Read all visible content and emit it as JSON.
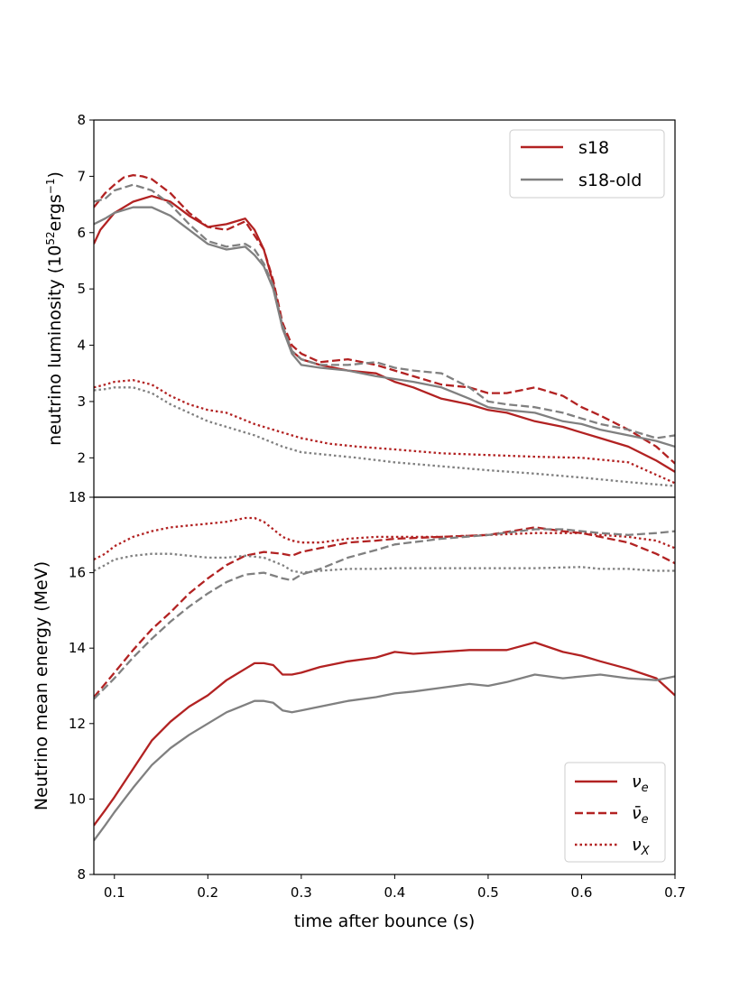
{
  "chart_data": [
    {
      "type": "line",
      "panel": "top",
      "title": "",
      "xlabel": "",
      "ylabel": "neutrino luminosity (10",
      "ylabel_sup1": "52",
      "ylabel_mid": "ergs",
      "ylabel_sup2": "−1",
      "ylabel_end": ")",
      "xlim": [
        0.078,
        0.7
      ],
      "ylim": [
        1.3,
        8
      ],
      "yticks": [
        2,
        3,
        4,
        5,
        6,
        7,
        8
      ],
      "legend": {
        "placement": "top-right",
        "entries": [
          "s18",
          "s18-old"
        ]
      },
      "series": [
        {
          "name": "s18 ν_e",
          "model": "s18",
          "flavor": "nu_e",
          "style": "solid",
          "color": "#b22222",
          "x": [
            0.078,
            0.085,
            0.1,
            0.12,
            0.14,
            0.16,
            0.18,
            0.2,
            0.22,
            0.24,
            0.25,
            0.26,
            0.27,
            0.28,
            0.29,
            0.3,
            0.32,
            0.35,
            0.38,
            0.4,
            0.42,
            0.45,
            0.48,
            0.5,
            0.52,
            0.55,
            0.58,
            0.6,
            0.62,
            0.65,
            0.68,
            0.7
          ],
          "y": [
            5.8,
            6.05,
            6.35,
            6.55,
            6.65,
            6.55,
            6.3,
            6.1,
            6.15,
            6.25,
            6.05,
            5.7,
            5.1,
            4.3,
            3.9,
            3.75,
            3.65,
            3.55,
            3.5,
            3.35,
            3.25,
            3.05,
            2.95,
            2.85,
            2.8,
            2.65,
            2.55,
            2.45,
            2.35,
            2.2,
            1.95,
            1.75
          ]
        },
        {
          "name": "s18 anti-ν_e",
          "model": "s18",
          "flavor": "anti_nu_e",
          "style": "dashed",
          "color": "#b22222",
          "x": [
            0.078,
            0.09,
            0.1,
            0.11,
            0.12,
            0.13,
            0.14,
            0.16,
            0.18,
            0.2,
            0.22,
            0.24,
            0.26,
            0.27,
            0.28,
            0.29,
            0.3,
            0.32,
            0.35,
            0.38,
            0.4,
            0.42,
            0.45,
            0.48,
            0.5,
            0.52,
            0.55,
            0.58,
            0.6,
            0.62,
            0.65,
            0.68,
            0.7
          ],
          "y": [
            6.45,
            6.7,
            6.85,
            6.98,
            7.02,
            7.0,
            6.95,
            6.7,
            6.35,
            6.1,
            6.05,
            6.2,
            5.7,
            5.15,
            4.4,
            4.0,
            3.85,
            3.7,
            3.75,
            3.65,
            3.55,
            3.45,
            3.3,
            3.25,
            3.15,
            3.15,
            3.25,
            3.1,
            2.9,
            2.75,
            2.5,
            2.2,
            1.9
          ]
        },
        {
          "name": "s18 ν_X",
          "model": "s18",
          "flavor": "nu_x",
          "style": "dotted",
          "color": "#b22222",
          "x": [
            0.078,
            0.09,
            0.1,
            0.12,
            0.14,
            0.16,
            0.18,
            0.2,
            0.22,
            0.25,
            0.28,
            0.3,
            0.33,
            0.36,
            0.4,
            0.45,
            0.5,
            0.55,
            0.6,
            0.65,
            0.7
          ],
          "y": [
            3.25,
            3.3,
            3.35,
            3.38,
            3.3,
            3.1,
            2.95,
            2.85,
            2.8,
            2.6,
            2.45,
            2.35,
            2.25,
            2.2,
            2.15,
            2.08,
            2.05,
            2.02,
            2.0,
            1.92,
            1.55
          ]
        },
        {
          "name": "s18-old ν_e",
          "model": "s18-old",
          "flavor": "nu_e",
          "style": "solid",
          "color": "#808080",
          "x": [
            0.078,
            0.09,
            0.1,
            0.12,
            0.14,
            0.16,
            0.18,
            0.2,
            0.22,
            0.24,
            0.25,
            0.26,
            0.27,
            0.28,
            0.29,
            0.3,
            0.32,
            0.35,
            0.38,
            0.4,
            0.42,
            0.45,
            0.48,
            0.5,
            0.52,
            0.55,
            0.58,
            0.6,
            0.62,
            0.65,
            0.68,
            0.7
          ],
          "y": [
            6.15,
            6.25,
            6.35,
            6.45,
            6.45,
            6.3,
            6.05,
            5.8,
            5.7,
            5.75,
            5.6,
            5.4,
            5.0,
            4.3,
            3.85,
            3.65,
            3.6,
            3.55,
            3.45,
            3.4,
            3.35,
            3.25,
            3.05,
            2.9,
            2.85,
            2.8,
            2.65,
            2.6,
            2.5,
            2.4,
            2.3,
            2.2
          ]
        },
        {
          "name": "s18-old anti-ν_e",
          "model": "s18-old",
          "flavor": "anti_nu_e",
          "style": "dashed",
          "color": "#808080",
          "x": [
            0.078,
            0.09,
            0.1,
            0.12,
            0.14,
            0.16,
            0.18,
            0.2,
            0.22,
            0.24,
            0.25,
            0.26,
            0.27,
            0.28,
            0.29,
            0.3,
            0.32,
            0.35,
            0.38,
            0.4,
            0.42,
            0.45,
            0.48,
            0.5,
            0.52,
            0.55,
            0.58,
            0.6,
            0.62,
            0.65,
            0.68,
            0.7
          ],
          "y": [
            6.55,
            6.6,
            6.75,
            6.85,
            6.75,
            6.5,
            6.15,
            5.85,
            5.75,
            5.8,
            5.7,
            5.45,
            5.05,
            4.35,
            3.9,
            3.75,
            3.65,
            3.65,
            3.7,
            3.6,
            3.55,
            3.5,
            3.25,
            3.0,
            2.95,
            2.9,
            2.8,
            2.7,
            2.6,
            2.5,
            2.35,
            2.4
          ]
        },
        {
          "name": "s18-old ν_X",
          "model": "s18-old",
          "flavor": "nu_x",
          "style": "dotted",
          "color": "#808080",
          "x": [
            0.078,
            0.09,
            0.1,
            0.12,
            0.14,
            0.16,
            0.18,
            0.2,
            0.22,
            0.25,
            0.28,
            0.3,
            0.33,
            0.36,
            0.4,
            0.45,
            0.5,
            0.55,
            0.6,
            0.65,
            0.7
          ],
          "y": [
            3.2,
            3.22,
            3.25,
            3.25,
            3.15,
            2.95,
            2.8,
            2.65,
            2.55,
            2.4,
            2.2,
            2.1,
            2.05,
            2.0,
            1.92,
            1.85,
            1.78,
            1.72,
            1.65,
            1.57,
            1.5
          ]
        }
      ]
    },
    {
      "type": "line",
      "panel": "bottom",
      "title": "",
      "xlabel": "time after bounce (s)",
      "ylabel": "Neutrino mean energy (MeV)",
      "xlim": [
        0.078,
        0.7
      ],
      "ylim": [
        8,
        18
      ],
      "xticks": [
        0.1,
        0.2,
        0.3,
        0.4,
        0.5,
        0.6,
        0.7
      ],
      "yticks": [
        8,
        10,
        12,
        14,
        16,
        18
      ],
      "legend": {
        "placement": "bottom-right",
        "entries": [
          "ν",
          "ν̄",
          "ν"
        ],
        "subscripts": [
          "e",
          "e",
          "X"
        ]
      },
      "series": [
        {
          "name": "s18 ν_e",
          "model": "s18",
          "flavor": "nu_e",
          "style": "solid",
          "color": "#b22222",
          "x": [
            0.078,
            0.09,
            0.1,
            0.12,
            0.14,
            0.16,
            0.18,
            0.2,
            0.22,
            0.24,
            0.25,
            0.26,
            0.27,
            0.28,
            0.29,
            0.3,
            0.32,
            0.35,
            0.38,
            0.4,
            0.42,
            0.45,
            0.48,
            0.5,
            0.52,
            0.55,
            0.58,
            0.6,
            0.62,
            0.65,
            0.68,
            0.7
          ],
          "y": [
            9.3,
            9.7,
            10.05,
            10.8,
            11.55,
            12.05,
            12.45,
            12.75,
            13.15,
            13.45,
            13.6,
            13.6,
            13.55,
            13.3,
            13.3,
            13.35,
            13.5,
            13.65,
            13.75,
            13.9,
            13.85,
            13.9,
            13.95,
            13.95,
            13.95,
            14.15,
            13.9,
            13.8,
            13.65,
            13.45,
            13.2,
            12.75
          ]
        },
        {
          "name": "s18 anti-ν_e",
          "model": "s18",
          "flavor": "anti_nu_e",
          "style": "dashed",
          "color": "#b22222",
          "x": [
            0.078,
            0.09,
            0.1,
            0.12,
            0.14,
            0.16,
            0.18,
            0.2,
            0.22,
            0.24,
            0.26,
            0.28,
            0.29,
            0.3,
            0.32,
            0.35,
            0.38,
            0.4,
            0.45,
            0.5,
            0.55,
            0.58,
            0.6,
            0.62,
            0.65,
            0.68,
            0.7
          ],
          "y": [
            12.7,
            13.05,
            13.35,
            13.95,
            14.5,
            14.95,
            15.45,
            15.85,
            16.2,
            16.45,
            16.55,
            16.5,
            16.45,
            16.55,
            16.65,
            16.8,
            16.85,
            16.9,
            16.95,
            17.0,
            17.2,
            17.1,
            17.05,
            16.95,
            16.8,
            16.5,
            16.25
          ]
        },
        {
          "name": "s18 ν_X",
          "model": "s18",
          "flavor": "nu_x",
          "style": "dotted",
          "color": "#b22222",
          "x": [
            0.078,
            0.09,
            0.1,
            0.12,
            0.14,
            0.16,
            0.18,
            0.2,
            0.22,
            0.24,
            0.25,
            0.26,
            0.27,
            0.28,
            0.29,
            0.3,
            0.32,
            0.35,
            0.38,
            0.4,
            0.45,
            0.5,
            0.55,
            0.6,
            0.62,
            0.65,
            0.68,
            0.7
          ],
          "y": [
            16.35,
            16.5,
            16.7,
            16.95,
            17.1,
            17.2,
            17.25,
            17.3,
            17.35,
            17.45,
            17.45,
            17.35,
            17.15,
            16.95,
            16.85,
            16.8,
            16.8,
            16.9,
            16.95,
            16.95,
            16.95,
            17.0,
            17.05,
            17.05,
            17.0,
            16.95,
            16.85,
            16.65
          ]
        },
        {
          "name": "s18-old ν_e",
          "model": "s18-old",
          "flavor": "nu_e",
          "style": "solid",
          "color": "#808080",
          "x": [
            0.078,
            0.09,
            0.1,
            0.12,
            0.14,
            0.16,
            0.18,
            0.2,
            0.22,
            0.24,
            0.25,
            0.26,
            0.27,
            0.28,
            0.29,
            0.3,
            0.32,
            0.35,
            0.38,
            0.4,
            0.42,
            0.45,
            0.48,
            0.5,
            0.52,
            0.55,
            0.58,
            0.6,
            0.62,
            0.65,
            0.68,
            0.7
          ],
          "y": [
            8.9,
            9.3,
            9.65,
            10.3,
            10.9,
            11.35,
            11.7,
            12.0,
            12.3,
            12.5,
            12.6,
            12.6,
            12.55,
            12.35,
            12.3,
            12.35,
            12.45,
            12.6,
            12.7,
            12.8,
            12.85,
            12.95,
            13.05,
            13.0,
            13.1,
            13.3,
            13.2,
            13.25,
            13.3,
            13.2,
            13.15,
            13.25
          ]
        },
        {
          "name": "s18-old anti-ν_e",
          "model": "s18-old",
          "flavor": "anti_nu_e",
          "style": "dashed",
          "color": "#808080",
          "x": [
            0.078,
            0.09,
            0.1,
            0.12,
            0.14,
            0.16,
            0.18,
            0.2,
            0.22,
            0.24,
            0.26,
            0.28,
            0.29,
            0.3,
            0.32,
            0.35,
            0.38,
            0.4,
            0.45,
            0.5,
            0.55,
            0.58,
            0.6,
            0.62,
            0.65,
            0.68,
            0.7
          ],
          "y": [
            12.65,
            12.95,
            13.2,
            13.75,
            14.25,
            14.7,
            15.1,
            15.45,
            15.75,
            15.95,
            16.0,
            15.85,
            15.8,
            15.95,
            16.1,
            16.4,
            16.6,
            16.75,
            16.9,
            17.0,
            17.15,
            17.15,
            17.1,
            17.05,
            17.0,
            17.05,
            17.1
          ]
        },
        {
          "name": "s18-old ν_X",
          "model": "s18-old",
          "flavor": "nu_x",
          "style": "dotted",
          "color": "#808080",
          "x": [
            0.078,
            0.09,
            0.1,
            0.12,
            0.14,
            0.16,
            0.18,
            0.2,
            0.22,
            0.24,
            0.26,
            0.28,
            0.29,
            0.3,
            0.32,
            0.35,
            0.38,
            0.4,
            0.45,
            0.5,
            0.55,
            0.6,
            0.62,
            0.65,
            0.68,
            0.7
          ],
          "y": [
            16.05,
            16.2,
            16.35,
            16.45,
            16.5,
            16.5,
            16.45,
            16.4,
            16.4,
            16.45,
            16.4,
            16.2,
            16.05,
            16.0,
            16.05,
            16.1,
            16.1,
            16.12,
            16.12,
            16.12,
            16.12,
            16.15,
            16.1,
            16.1,
            16.05,
            16.05
          ]
        }
      ]
    }
  ]
}
